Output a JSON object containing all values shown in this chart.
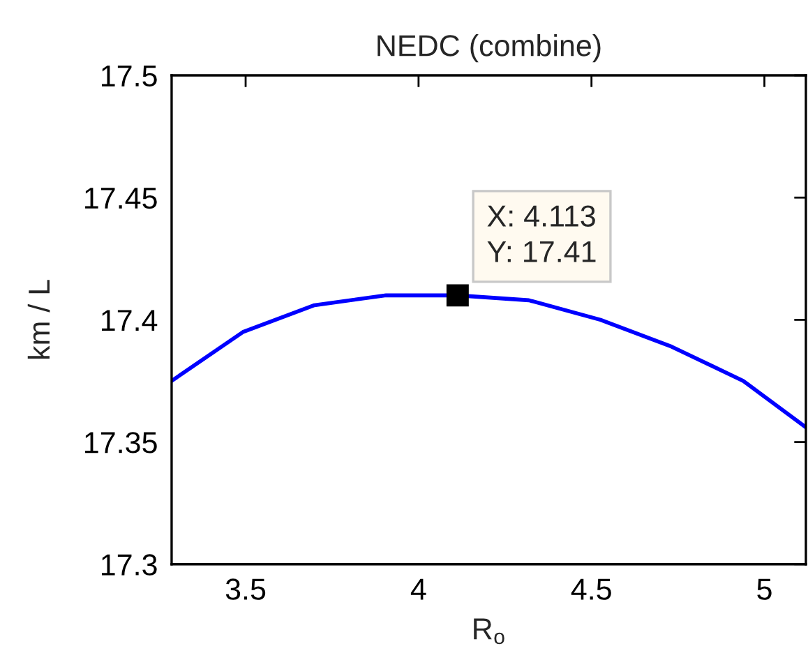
{
  "chart_data": {
    "type": "line",
    "title": "NEDC (combine)",
    "xlabel": "R$_{o}$",
    "ylabel": "km / L",
    "x": [
      3.286,
      3.492,
      3.699,
      3.906,
      4.113,
      4.319,
      4.526,
      4.732,
      4.939,
      5.12
    ],
    "series": [
      {
        "color": "#0000ff",
        "values": [
          17.375,
          17.395,
          17.406,
          17.41,
          17.41,
          17.408,
          17.4,
          17.389,
          17.375,
          17.356
        ]
      }
    ],
    "xlim": [
      3.286,
      5.12
    ],
    "ylim": [
      17.3,
      17.5
    ],
    "xticks": [
      3.5,
      4,
      4.5,
      5
    ],
    "yticks": [
      17.3,
      17.35,
      17.4,
      17.45,
      17.5
    ],
    "annotations": [
      {
        "text": "X: 4.113\nY: 17.41",
        "x": 4.113,
        "y": 17.41
      }
    ]
  }
}
